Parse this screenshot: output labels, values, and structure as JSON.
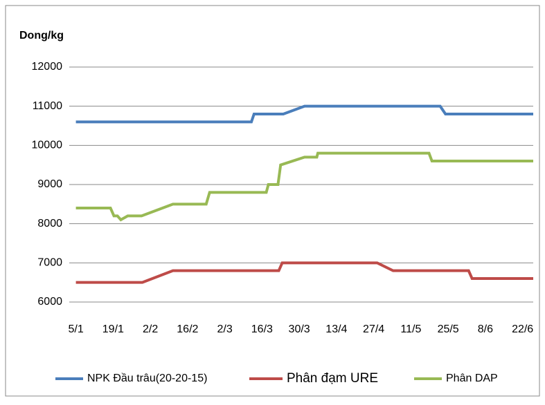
{
  "chart_data": {
    "type": "line",
    "y_label": "Dong/kg",
    "xlim": [
      2.5,
      177
    ],
    "ylim": [
      6000,
      12000
    ],
    "xticks": [
      {
        "value": 5,
        "label": "5/1"
      },
      {
        "value": 19,
        "label": "19/1"
      },
      {
        "value": 33,
        "label": "2/2"
      },
      {
        "value": 47,
        "label": "16/2"
      },
      {
        "value": 61,
        "label": "2/3"
      },
      {
        "value": 75,
        "label": "16/3"
      },
      {
        "value": 89,
        "label": "30/3"
      },
      {
        "value": 103,
        "label": "13/4"
      },
      {
        "value": 117,
        "label": "27/4"
      },
      {
        "value": 131,
        "label": "11/5"
      },
      {
        "value": 145,
        "label": "25/5"
      },
      {
        "value": 159,
        "label": "8/6"
      },
      {
        "value": 173,
        "label": "22/6"
      }
    ],
    "yticks": [
      6000,
      7000,
      8000,
      9000,
      10000,
      11000,
      12000
    ],
    "grid": true,
    "legend": "bottom",
    "series": [
      {
        "name": "NPK Đầu trâu(20-20-15)",
        "color": "#4a7ebb",
        "x": [
          5,
          71,
          72,
          83,
          91,
          142,
          144,
          177
        ],
        "values": [
          10600,
          10600,
          10800,
          10800,
          11000,
          11000,
          10800,
          10800
        ]
      },
      {
        "name": "Phân đạm URE",
        "color": "#be4b48",
        "x": [
          5,
          30,
          41.5,
          81.3,
          82.6,
          118.3,
          124.3,
          152.7,
          154,
          177
        ],
        "values": [
          6500,
          6500,
          6800,
          6800,
          7000,
          7000,
          6800,
          6800,
          6600,
          6600
        ]
      },
      {
        "name": "Phân DAP",
        "color": "#98b954",
        "x": [
          5,
          18,
          19.3,
          20.6,
          21.9,
          24.5,
          29.7,
          41.5,
          54,
          55.3,
          76.6,
          77.4,
          81,
          82,
          91,
          95.6,
          96,
          137.8,
          138.9,
          177
        ],
        "values": [
          8400,
          8400,
          8200,
          8200,
          8100,
          8200,
          8200,
          8500,
          8500,
          8800,
          8800,
          9000,
          9000,
          9500,
          9700,
          9700,
          9800,
          9800,
          9600,
          9600
        ]
      }
    ]
  }
}
